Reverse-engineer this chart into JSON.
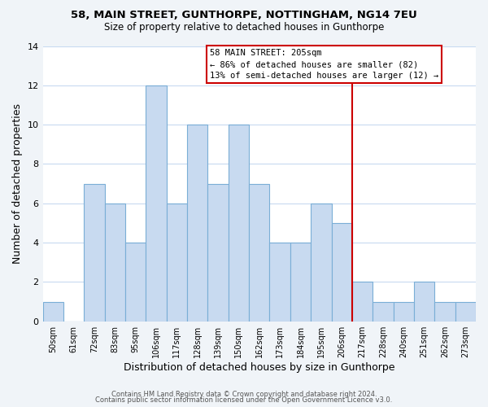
{
  "title1": "58, MAIN STREET, GUNTHORPE, NOTTINGHAM, NG14 7EU",
  "title2": "Size of property relative to detached houses in Gunthorpe",
  "xlabel": "Distribution of detached houses by size in Gunthorpe",
  "ylabel": "Number of detached properties",
  "bin_labels": [
    "50sqm",
    "61sqm",
    "72sqm",
    "83sqm",
    "95sqm",
    "106sqm",
    "117sqm",
    "128sqm",
    "139sqm",
    "150sqm",
    "162sqm",
    "173sqm",
    "184sqm",
    "195sqm",
    "206sqm",
    "217sqm",
    "228sqm",
    "240sqm",
    "251sqm",
    "262sqm",
    "273sqm"
  ],
  "bar_heights": [
    1,
    0,
    7,
    6,
    4,
    12,
    6,
    10,
    7,
    10,
    7,
    4,
    4,
    6,
    5,
    2,
    1,
    1,
    2,
    1,
    1
  ],
  "bar_color": "#c8daf0",
  "bar_edge_color": "#7aaed6",
  "grid_color": "#c8daf0",
  "plot_bg_color": "#ffffff",
  "fig_bg_color": "#f0f4f8",
  "ref_line_color": "#cc0000",
  "annotation_title": "58 MAIN STREET: 205sqm",
  "annotation_line1": "← 86% of detached houses are smaller (82)",
  "annotation_line2": "13% of semi-detached houses are larger (12) →",
  "annotation_box_color": "#ffffff",
  "annotation_box_edge_color": "#cc0000",
  "footer1": "Contains HM Land Registry data © Crown copyright and database right 2024.",
  "footer2": "Contains public sector information licensed under the Open Government Licence v3.0.",
  "ylim": [
    0,
    14
  ],
  "yticks": [
    0,
    2,
    4,
    6,
    8,
    10,
    12,
    14
  ],
  "ref_bar_index": 14
}
